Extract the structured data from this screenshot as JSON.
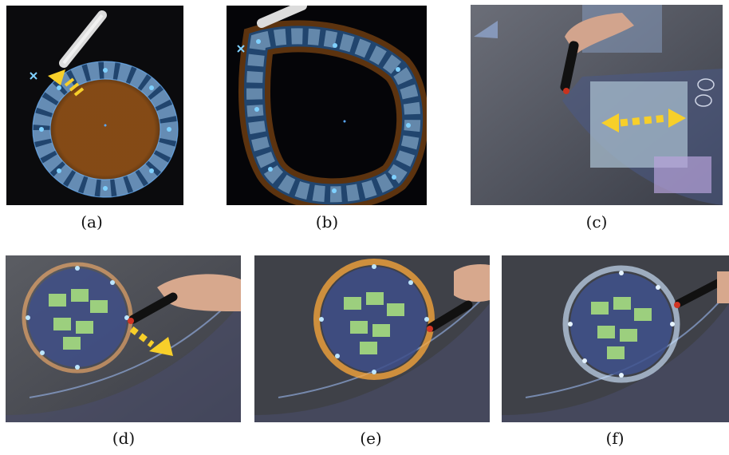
{
  "figure": {
    "panels": [
      {
        "id": "a",
        "caption": "(a)",
        "content": "circular photo ring with stylus"
      },
      {
        "id": "b",
        "caption": "(b)",
        "content": "teardrop photo ring with stylus"
      },
      {
        "id": "c",
        "caption": "(c)",
        "content": "tabletop photo with hand and pen"
      },
      {
        "id": "d",
        "caption": "(d)",
        "content": "circle of photos on tabletop, pen dragging"
      },
      {
        "id": "e",
        "caption": "(e)",
        "content": "circle of photos on tabletop, orange glow"
      },
      {
        "id": "f",
        "caption": "(f)",
        "content": "circle of photos on tabletop, blue glow"
      }
    ]
  }
}
